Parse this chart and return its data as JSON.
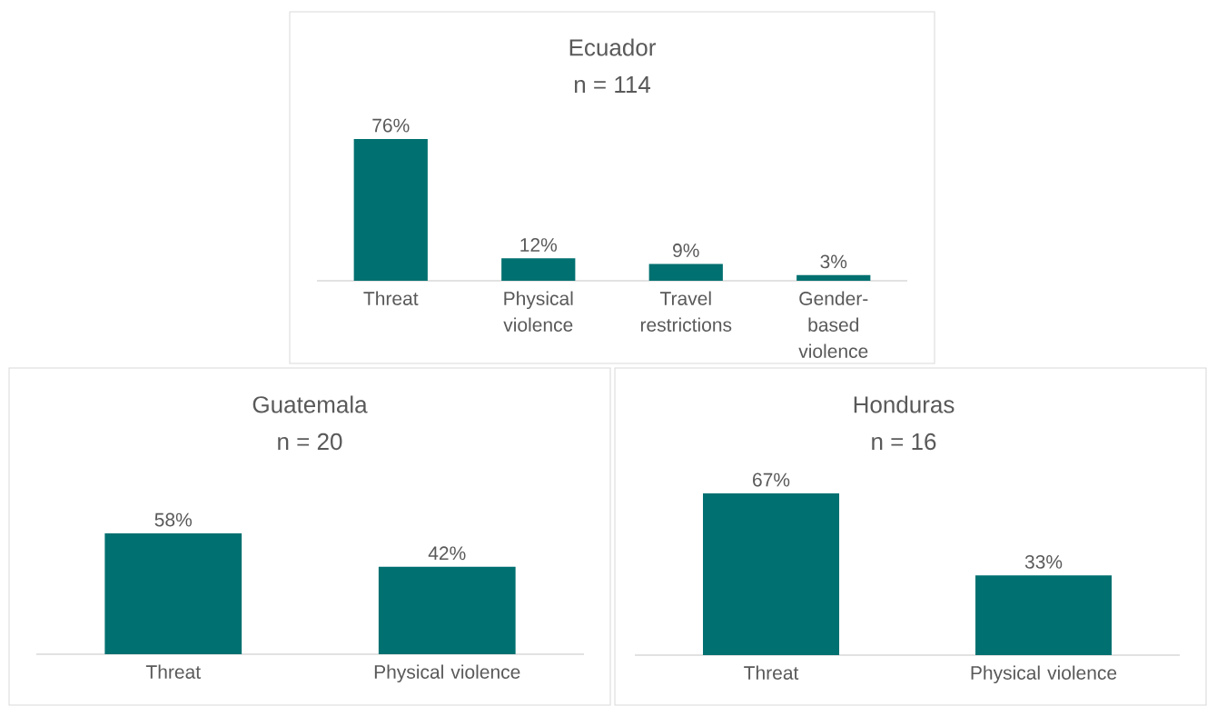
{
  "chart_data": [
    {
      "type": "bar",
      "title": "Ecuador",
      "subtitle": "n = 114",
      "categories": [
        "Threat",
        "Physical violence",
        "Travel restrictions",
        "Gender-based violence"
      ],
      "values": [
        76,
        12,
        9,
        3
      ],
      "value_labels": [
        "76%",
        "12%",
        "9%",
        "3%"
      ],
      "color": "#007070"
    },
    {
      "type": "bar",
      "title": "Guatemala",
      "subtitle": "n = 20",
      "categories": [
        "Threat",
        "Physical violence"
      ],
      "values": [
        58,
        42
      ],
      "value_labels": [
        "58%",
        "42%"
      ],
      "color": "#007070"
    },
    {
      "type": "bar",
      "title": "Honduras",
      "subtitle": "n = 16",
      "categories": [
        "Threat",
        "Physical violence"
      ],
      "values": [
        67,
        33
      ],
      "value_labels": [
        "67%",
        "33%"
      ],
      "color": "#007070"
    }
  ]
}
